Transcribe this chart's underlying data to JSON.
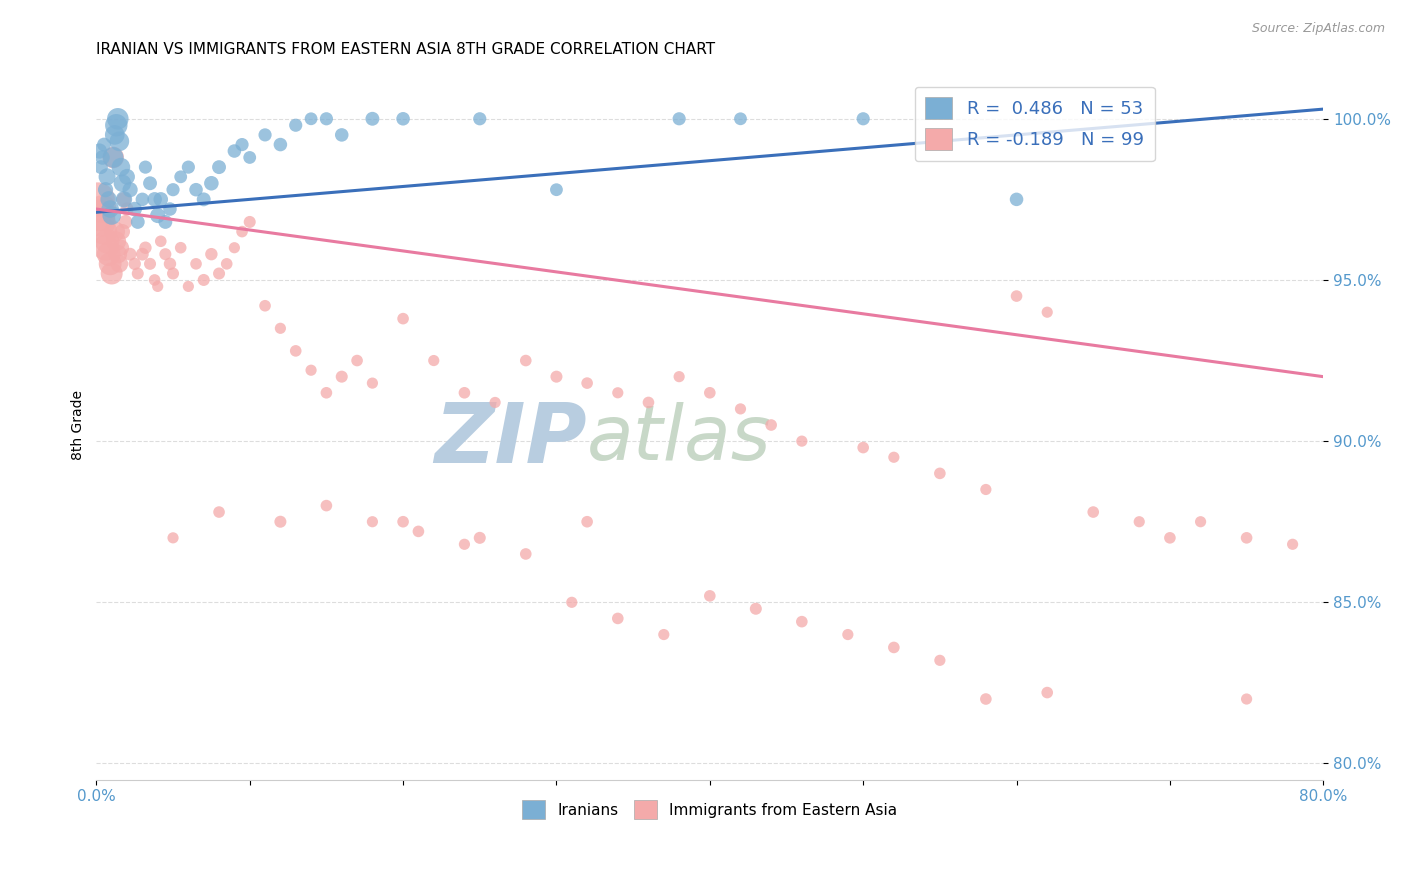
{
  "title": "IRANIAN VS IMMIGRANTS FROM EASTERN ASIA 8TH GRADE CORRELATION CHART",
  "source": "Source: ZipAtlas.com",
  "ylabel": "8th Grade",
  "xlim": [
    0.0,
    0.8
  ],
  "ylim": [
    0.795,
    1.015
  ],
  "xticks": [
    0.0,
    0.1,
    0.2,
    0.3,
    0.4,
    0.5,
    0.6,
    0.7,
    0.8
  ],
  "xticklabels": [
    "0.0%",
    "",
    "",
    "",
    "",
    "",
    "",
    "",
    "80.0%"
  ],
  "yticks": [
    0.8,
    0.85,
    0.9,
    0.95,
    1.0
  ],
  "yticklabels": [
    "80.0%",
    "85.0%",
    "90.0%",
    "95.0%",
    "100.0%"
  ],
  "legend1_label": "R =  0.486   N = 53",
  "legend2_label": "R = -0.189   N = 99",
  "blue_color": "#7BAFD4",
  "pink_color": "#F4AAAA",
  "blue_line_color": "#3A6FBA",
  "pink_line_color": "#E87AA0",
  "blue_line": [
    0.0,
    0.8,
    0.971,
    1.003
  ],
  "pink_line": [
    0.0,
    0.8,
    0.972,
    0.92
  ],
  "blue_scatter_x": [
    0.002,
    0.003,
    0.004,
    0.005,
    0.006,
    0.007,
    0.008,
    0.009,
    0.01,
    0.011,
    0.012,
    0.013,
    0.014,
    0.015,
    0.016,
    0.017,
    0.018,
    0.02,
    0.022,
    0.025,
    0.027,
    0.03,
    0.032,
    0.035,
    0.038,
    0.04,
    0.042,
    0.045,
    0.048,
    0.05,
    0.055,
    0.06,
    0.065,
    0.07,
    0.075,
    0.08,
    0.09,
    0.095,
    0.1,
    0.11,
    0.12,
    0.13,
    0.14,
    0.15,
    0.16,
    0.18,
    0.2,
    0.25,
    0.3,
    0.38,
    0.42,
    0.5,
    0.6
  ],
  "blue_scatter_y": [
    0.99,
    0.985,
    0.988,
    0.992,
    0.978,
    0.982,
    0.975,
    0.972,
    0.97,
    0.988,
    0.995,
    0.998,
    1.0,
    0.993,
    0.985,
    0.98,
    0.975,
    0.982,
    0.978,
    0.972,
    0.968,
    0.975,
    0.985,
    0.98,
    0.975,
    0.97,
    0.975,
    0.968,
    0.972,
    0.978,
    0.982,
    0.985,
    0.978,
    0.975,
    0.98,
    0.985,
    0.99,
    0.992,
    0.988,
    0.995,
    0.992,
    0.998,
    1.0,
    1.0,
    0.995,
    1.0,
    1.0,
    1.0,
    0.978,
    1.0,
    1.0,
    1.0,
    0.975
  ],
  "blue_scatter_size": [
    120,
    100,
    110,
    100,
    120,
    150,
    140,
    160,
    180,
    220,
    200,
    260,
    240,
    200,
    180,
    160,
    140,
    130,
    120,
    110,
    100,
    95,
    90,
    100,
    110,
    120,
    110,
    100,
    95,
    90,
    85,
    90,
    95,
    100,
    110,
    100,
    95,
    90,
    85,
    90,
    95,
    90,
    85,
    90,
    95,
    100,
    95,
    90,
    85,
    90,
    85,
    90,
    95
  ],
  "pink_scatter_x": [
    0.001,
    0.002,
    0.003,
    0.004,
    0.005,
    0.006,
    0.007,
    0.008,
    0.009,
    0.01,
    0.011,
    0.012,
    0.013,
    0.014,
    0.015,
    0.016,
    0.017,
    0.018,
    0.019,
    0.02,
    0.022,
    0.025,
    0.027,
    0.03,
    0.032,
    0.035,
    0.038,
    0.04,
    0.042,
    0.045,
    0.048,
    0.05,
    0.055,
    0.06,
    0.065,
    0.07,
    0.075,
    0.08,
    0.085,
    0.09,
    0.095,
    0.1,
    0.11,
    0.12,
    0.13,
    0.14,
    0.15,
    0.16,
    0.17,
    0.18,
    0.2,
    0.22,
    0.24,
    0.26,
    0.28,
    0.3,
    0.32,
    0.34,
    0.36,
    0.38,
    0.4,
    0.42,
    0.44,
    0.46,
    0.5,
    0.52,
    0.55,
    0.58,
    0.6,
    0.62,
    0.65,
    0.68,
    0.7,
    0.72,
    0.75,
    0.78,
    0.2,
    0.25,
    0.32,
    0.05,
    0.08,
    0.12,
    0.15,
    0.18,
    0.21,
    0.24,
    0.28,
    0.31,
    0.34,
    0.37,
    0.4,
    0.43,
    0.46,
    0.49,
    0.52,
    0.55,
    0.58,
    0.75,
    0.62
  ],
  "pink_scatter_y": [
    0.975,
    0.97,
    0.968,
    0.972,
    0.965,
    0.96,
    0.962,
    0.958,
    0.955,
    0.952,
    0.988,
    0.965,
    0.962,
    0.958,
    0.955,
    0.96,
    0.965,
    0.975,
    0.968,
    0.972,
    0.958,
    0.955,
    0.952,
    0.958,
    0.96,
    0.955,
    0.95,
    0.948,
    0.962,
    0.958,
    0.955,
    0.952,
    0.96,
    0.948,
    0.955,
    0.95,
    0.958,
    0.952,
    0.955,
    0.96,
    0.965,
    0.968,
    0.942,
    0.935,
    0.928,
    0.922,
    0.915,
    0.92,
    0.925,
    0.918,
    0.938,
    0.925,
    0.915,
    0.912,
    0.925,
    0.92,
    0.918,
    0.915,
    0.912,
    0.92,
    0.915,
    0.91,
    0.905,
    0.9,
    0.898,
    0.895,
    0.89,
    0.885,
    0.945,
    0.94,
    0.878,
    0.875,
    0.87,
    0.875,
    0.87,
    0.868,
    0.875,
    0.87,
    0.875,
    0.87,
    0.878,
    0.875,
    0.88,
    0.875,
    0.872,
    0.868,
    0.865,
    0.85,
    0.845,
    0.84,
    0.852,
    0.848,
    0.844,
    0.84,
    0.836,
    0.832,
    0.82,
    0.82,
    0.822
  ],
  "pink_scatter_size": [
    600,
    520,
    450,
    400,
    360,
    340,
    310,
    290,
    270,
    250,
    240,
    220,
    200,
    180,
    160,
    140,
    120,
    110,
    100,
    90,
    85,
    80,
    75,
    85,
    80,
    75,
    70,
    65,
    70,
    75,
    80,
    75,
    70,
    65,
    70,
    75,
    80,
    75,
    70,
    65,
    70,
    75,
    70,
    65,
    70,
    65,
    70,
    75,
    70,
    65,
    70,
    65,
    70,
    65,
    70,
    75,
    70,
    65,
    70,
    65,
    70,
    65,
    70,
    65,
    70,
    65,
    70,
    65,
    70,
    65,
    70,
    65,
    70,
    65,
    70,
    65,
    70,
    75,
    70,
    65,
    70,
    75,
    70,
    65,
    70,
    65,
    70,
    65,
    70,
    65,
    70,
    75,
    70,
    65,
    70,
    65,
    70,
    65,
    70
  ],
  "watermark_zip": "ZIP",
  "watermark_atlas": "atlas",
  "watermark_color_zip": "#B8CDE0",
  "watermark_color_atlas": "#C8D8C8",
  "background_color": "#FFFFFF",
  "grid_color": "#DDDDDD",
  "tick_color": "#5599CC",
  "label_color": "#000000",
  "source_color": "#999999"
}
